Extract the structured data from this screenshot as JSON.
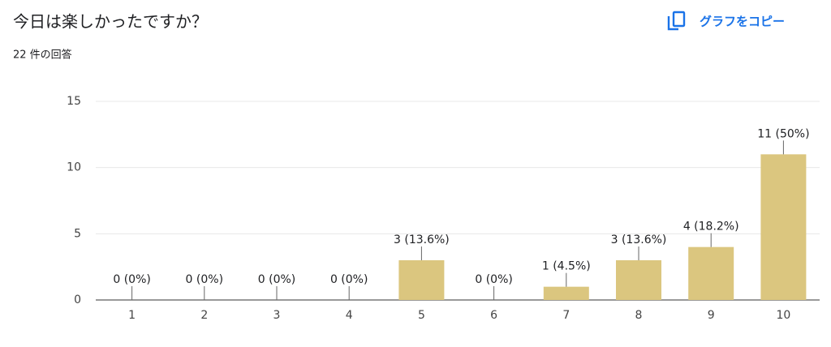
{
  "header": {
    "title": "今日は楽しかったですか？",
    "subtitle": "22 件の回答",
    "copy_button": "グラフをコピー"
  },
  "chart_data": {
    "type": "bar",
    "categories": [
      "1",
      "2",
      "3",
      "4",
      "5",
      "6",
      "7",
      "8",
      "9",
      "10"
    ],
    "values": [
      0,
      0,
      0,
      0,
      3,
      0,
      1,
      3,
      4,
      11
    ],
    "value_labels": [
      "0 (0%)",
      "0 (0%)",
      "0 (0%)",
      "0 (0%)",
      "3 (13.6%)",
      "0 (0%)",
      "1 (4.5%)",
      "3 (13.6%)",
      "4 (18.2%)",
      "11 (50%)"
    ],
    "color": "#dbc67f",
    "ylim": [
      0,
      15
    ],
    "yticks": [
      0,
      5,
      10,
      15
    ],
    "grid": true
  }
}
